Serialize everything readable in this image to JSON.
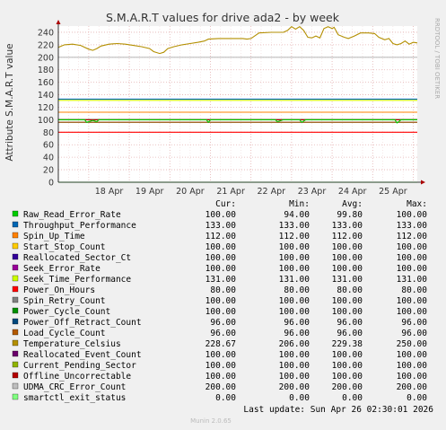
{
  "chart_data": {
    "type": "line",
    "title": "S.M.A.R.T values for drive ada2 - by week",
    "ylabel": "Attribute S.M.A.R.T value",
    "side_label": "RRDTOOL / TOBI OETIKER",
    "ylim": [
      0,
      250
    ],
    "yticks": [
      0,
      20,
      40,
      60,
      80,
      100,
      120,
      140,
      160,
      180,
      200,
      220,
      240
    ],
    "x_categories": [
      "18 Apr",
      "19 Apr",
      "20 Apr",
      "21 Apr",
      "22 Apr",
      "23 Apr",
      "24 Apr",
      "25 Apr"
    ],
    "x_range_days": [
      17.25,
      26.1
    ],
    "grid": true,
    "legend_position": "bottom",
    "columns": [
      "Cur:",
      "Min:",
      "Avg:",
      "Max:"
    ],
    "series": [
      {
        "name": "Raw_Read_Error_Rate",
        "color": "#00cc00",
        "cur": "100.00",
        "min": "94.00",
        "avg": "99.80",
        "max": "100.00",
        "values": [
          [
            17.25,
            100
          ],
          [
            17.9,
            100
          ],
          [
            17.95,
            96
          ],
          [
            18.1,
            99
          ],
          [
            18.2,
            97
          ],
          [
            18.25,
            100
          ],
          [
            20.9,
            100
          ],
          [
            20.95,
            96
          ],
          [
            21.0,
            100
          ],
          [
            22.6,
            100
          ],
          [
            22.65,
            97
          ],
          [
            22.8,
            100
          ],
          [
            23.2,
            100
          ],
          [
            23.25,
            96
          ],
          [
            23.35,
            100
          ],
          [
            25.55,
            100
          ],
          [
            25.6,
            95
          ],
          [
            25.7,
            100
          ],
          [
            26.1,
            100
          ]
        ]
      },
      {
        "name": "Throughput_Performance",
        "color": "#0066b3",
        "cur": "133.00",
        "min": "133.00",
        "avg": "133.00",
        "max": "133.00",
        "values": [
          [
            17.25,
            133
          ],
          [
            26.1,
            133
          ]
        ]
      },
      {
        "name": "Spin_Up_Time",
        "color": "#ff8000",
        "cur": "112.00",
        "min": "112.00",
        "avg": "112.00",
        "max": "112.00",
        "values": [
          [
            17.25,
            112
          ],
          [
            26.1,
            112
          ]
        ]
      },
      {
        "name": "Start_Stop_Count",
        "color": "#ffcc00",
        "cur": "100.00",
        "min": "100.00",
        "avg": "100.00",
        "max": "100.00",
        "values": [
          [
            17.25,
            100
          ],
          [
            26.1,
            100
          ]
        ]
      },
      {
        "name": "Reallocated_Sector_Ct",
        "color": "#330099",
        "cur": "100.00",
        "min": "100.00",
        "avg": "100.00",
        "max": "100.00",
        "values": [
          [
            17.25,
            100
          ],
          [
            26.1,
            100
          ]
        ]
      },
      {
        "name": "Seek_Error_Rate",
        "color": "#990099",
        "cur": "100.00",
        "min": "100.00",
        "avg": "100.00",
        "max": "100.00",
        "values": [
          [
            17.25,
            100
          ],
          [
            26.1,
            100
          ]
        ]
      },
      {
        "name": "Seek_Time_Performance",
        "color": "#ccff00",
        "cur": "131.00",
        "min": "131.00",
        "avg": "131.00",
        "max": "131.00",
        "values": [
          [
            17.25,
            131
          ],
          [
            26.1,
            131
          ]
        ]
      },
      {
        "name": "Power_On_Hours",
        "color": "#ff0000",
        "cur": "80.00",
        "min": "80.00",
        "avg": "80.00",
        "max": "80.00",
        "values": [
          [
            17.25,
            80
          ],
          [
            26.1,
            80
          ]
        ]
      },
      {
        "name": "Spin_Retry_Count",
        "color": "#808080",
        "cur": "100.00",
        "min": "100.00",
        "avg": "100.00",
        "max": "100.00",
        "values": [
          [
            17.25,
            100
          ],
          [
            26.1,
            100
          ]
        ]
      },
      {
        "name": "Power_Cycle_Count",
        "color": "#008f00",
        "cur": "100.00",
        "min": "100.00",
        "avg": "100.00",
        "max": "100.00",
        "values": [
          [
            17.25,
            100
          ],
          [
            26.1,
            100
          ]
        ]
      },
      {
        "name": "Power_Off_Retract_Count",
        "color": "#00487d",
        "cur": "96.00",
        "min": "96.00",
        "avg": "96.00",
        "max": "96.00",
        "values": [
          [
            17.25,
            96
          ],
          [
            26.1,
            96
          ]
        ]
      },
      {
        "name": "Load_Cycle_Count",
        "color": "#b35a00",
        "cur": "96.00",
        "min": "96.00",
        "avg": "96.00",
        "max": "96.00",
        "values": [
          [
            17.25,
            96
          ],
          [
            26.1,
            96
          ]
        ]
      },
      {
        "name": "Temperature_Celsius",
        "color": "#b38f00",
        "cur": "228.67",
        "min": "206.00",
        "avg": "229.38",
        "max": "250.00",
        "values": [
          [
            17.25,
            216
          ],
          [
            17.4,
            220
          ],
          [
            17.6,
            221
          ],
          [
            17.8,
            219
          ],
          [
            17.9,
            216
          ],
          [
            18.0,
            213
          ],
          [
            18.1,
            211
          ],
          [
            18.2,
            214
          ],
          [
            18.3,
            218
          ],
          [
            18.5,
            221
          ],
          [
            18.7,
            222
          ],
          [
            18.9,
            221
          ],
          [
            19.1,
            219
          ],
          [
            19.3,
            217
          ],
          [
            19.5,
            214
          ],
          [
            19.6,
            209
          ],
          [
            19.75,
            206
          ],
          [
            19.85,
            208
          ],
          [
            19.95,
            214
          ],
          [
            20.1,
            217
          ],
          [
            20.3,
            220
          ],
          [
            20.5,
            222
          ],
          [
            20.7,
            224
          ],
          [
            20.85,
            226
          ],
          [
            20.95,
            229
          ],
          [
            21.2,
            230
          ],
          [
            21.5,
            230
          ],
          [
            21.8,
            230
          ],
          [
            21.9,
            229
          ],
          [
            22.0,
            230
          ],
          [
            22.2,
            239
          ],
          [
            22.5,
            240
          ],
          [
            22.8,
            240
          ],
          [
            22.9,
            243
          ],
          [
            23.0,
            249
          ],
          [
            23.1,
            245
          ],
          [
            23.2,
            249
          ],
          [
            23.3,
            243
          ],
          [
            23.4,
            232
          ],
          [
            23.5,
            231
          ],
          [
            23.6,
            234
          ],
          [
            23.7,
            231
          ],
          [
            23.8,
            246
          ],
          [
            23.9,
            249
          ],
          [
            24.0,
            246
          ],
          [
            24.05,
            248
          ],
          [
            24.15,
            236
          ],
          [
            24.3,
            232
          ],
          [
            24.4,
            230
          ],
          [
            24.55,
            234
          ],
          [
            24.7,
            239
          ],
          [
            24.9,
            239
          ],
          [
            25.05,
            238
          ],
          [
            25.15,
            232
          ],
          [
            25.3,
            228
          ],
          [
            25.4,
            230
          ],
          [
            25.5,
            222
          ],
          [
            25.6,
            220
          ],
          [
            25.7,
            222
          ],
          [
            25.8,
            226
          ],
          [
            25.9,
            221
          ],
          [
            26.0,
            224
          ],
          [
            26.1,
            223
          ]
        ]
      },
      {
        "name": "Reallocated_Event_Count",
        "color": "#6b006b",
        "cur": "100.00",
        "min": "100.00",
        "avg": "100.00",
        "max": "100.00",
        "values": [
          [
            17.25,
            100
          ],
          [
            26.1,
            100
          ]
        ]
      },
      {
        "name": "Current_Pending_Sector",
        "color": "#8fb300",
        "cur": "100.00",
        "min": "100.00",
        "avg": "100.00",
        "max": "100.00",
        "values": [
          [
            17.25,
            100
          ],
          [
            26.1,
            100
          ]
        ]
      },
      {
        "name": "Offline_Uncorrectable",
        "color": "#b30000",
        "cur": "100.00",
        "min": "100.00",
        "avg": "100.00",
        "max": "100.00",
        "values": [
          [
            17.25,
            100
          ],
          [
            26.1,
            100
          ]
        ]
      },
      {
        "name": "UDMA_CRC_Error_Count",
        "color": "#bebebe",
        "cur": "200.00",
        "min": "200.00",
        "avg": "200.00",
        "max": "200.00",
        "values": [
          [
            17.25,
            200
          ],
          [
            26.1,
            200
          ]
        ]
      },
      {
        "name": "smartctl_exit_status",
        "color": "#80ff80",
        "cur": "0.00",
        "min": "0.00",
        "avg": "0.00",
        "max": "0.00",
        "values": [
          [
            17.25,
            0
          ],
          [
            26.1,
            0
          ]
        ]
      }
    ],
    "last_update": "Last update: Sun Apr 26 02:30:01 2026",
    "footer": "Munin 2.0.65"
  }
}
